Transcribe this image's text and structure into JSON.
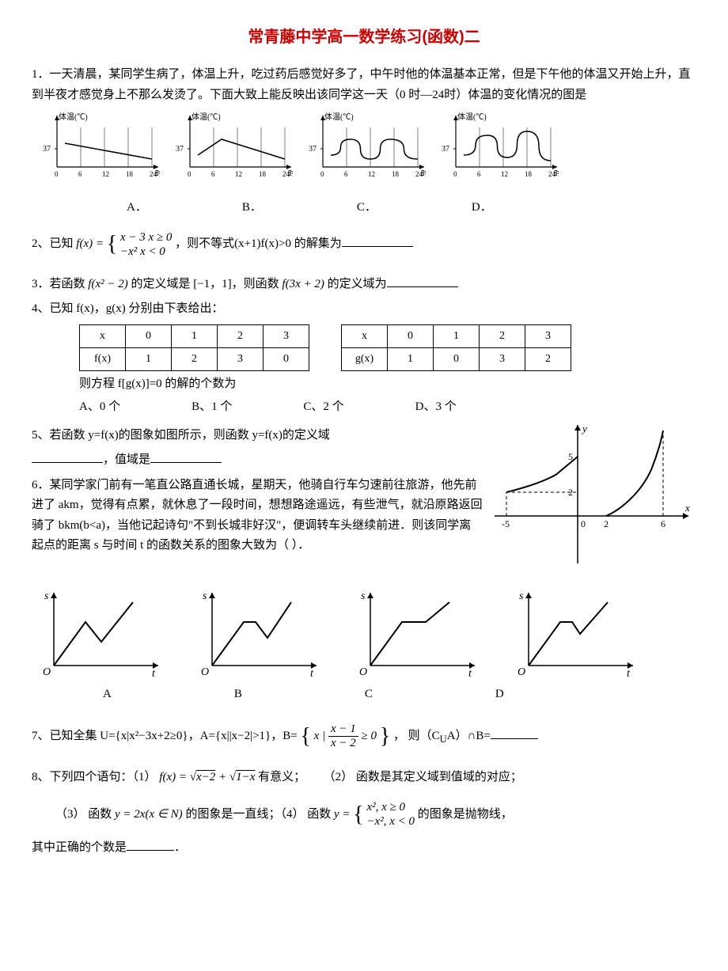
{
  "title": "常青藤中学高一数学练习(函数)二",
  "q1": {
    "num": "1．",
    "text": "一天清晨，某同学生病了，体温上升，吃过药后感觉好多了，中午时他的体温基本正常，但是下午他的体温又开始上升，直到半夜才感觉身上不那么发烫了。下面大致上能反映出该同学这一天（0 时—24时）体温的变化情况的图是",
    "axis_y": "体温(℃)",
    "axis_x": "时",
    "y_tick": "37",
    "x_ticks": [
      "0",
      "6",
      "12",
      "18",
      "24"
    ],
    "opts": [
      "A．",
      "B．",
      "C．",
      "D．"
    ],
    "colors": {
      "axis": "#000000",
      "bg": "#ffffff"
    },
    "curves": {
      "A": [
        [
          10,
          30
        ],
        [
          120,
          50
        ]
      ],
      "B": [
        [
          10,
          45
        ],
        [
          40,
          25
        ],
        [
          120,
          50
        ]
      ],
      "C": [
        [
          10,
          45
        ],
        [
          35,
          25
        ],
        [
          60,
          50
        ],
        [
          85,
          25
        ],
        [
          120,
          50
        ]
      ],
      "D": [
        [
          10,
          45
        ],
        [
          40,
          20
        ],
        [
          65,
          48
        ],
        [
          90,
          15
        ],
        [
          120,
          52
        ]
      ]
    }
  },
  "q2": {
    "num": "2、",
    "pre": "已知 ",
    "fx": "f(x) = ",
    "p1": "x − 3    x ≥ 0",
    "p2": "−x²     x < 0",
    "post": "，则不等式(x+1)f(x)>0 的解集为",
    "blank": true
  },
  "q3": {
    "num": "3．",
    "text_a": "若函数 ",
    "f1": "f(x² − 2)",
    "text_b": " 的定义域是 [−1，1]，则函数 ",
    "f2": "f(3x + 2)",
    "text_c": " 的定义域为",
    "blank": true
  },
  "q4": {
    "num": "4、",
    "text": "已知 f(x)，g(x) 分别由下表给出：",
    "t1": {
      "head": [
        "x",
        "0",
        "1",
        "2",
        "3"
      ],
      "row": [
        "f(x)",
        "1",
        "2",
        "3",
        "0"
      ]
    },
    "t2": {
      "head": [
        "x",
        "0",
        "1",
        "2",
        "3"
      ],
      "row": [
        "g(x)",
        "1",
        "0",
        "3",
        "2"
      ]
    },
    "q": "则方程 f[g(x)]=0 的解的个数为",
    "opts": [
      "A、0 个",
      "B、1 个",
      "C、2 个",
      "D、3 个"
    ]
  },
  "q5": {
    "num": "5、",
    "text": "若函数 y=f(x)的图象如图所示，则函数 y=f(x)的定义域",
    "text2": "，值域是",
    "graph": {
      "x_label": "x",
      "y_label": "y",
      "x_ticks": [
        -5,
        0,
        2,
        6
      ],
      "y_ticks": [
        2,
        5
      ],
      "color": "#000000"
    }
  },
  "q6": {
    "num": "6．",
    "text": "某同学家门前有一笔直公路直通长城，星期天，他骑自行车匀速前往旅游，他先前进了 akm，觉得有点累，就休息了一段时间，想想路途遥远，有些泄气，就沿原路返回骑了 bkm(b<a)，当他记起诗句\"不到长城非好汉\"，便调转车头继续前进．则该同学离起点的距离 s 与时间 t 的函数关系的图象大致为（    ）．",
    "s_label": "s",
    "t_label": "t",
    "o_label": "O",
    "opts": [
      "A",
      "B",
      "C",
      "D"
    ],
    "curves": {
      "A": [
        [
          0,
          100
        ],
        [
          40,
          45
        ],
        [
          60,
          70
        ],
        [
          100,
          20
        ]
      ],
      "B": [
        [
          0,
          100
        ],
        [
          40,
          45
        ],
        [
          55,
          45
        ],
        [
          70,
          65
        ],
        [
          100,
          20
        ]
      ],
      "C": [
        [
          0,
          100
        ],
        [
          40,
          45
        ],
        [
          70,
          45
        ],
        [
          100,
          20
        ]
      ],
      "D": [
        [
          0,
          100
        ],
        [
          40,
          45
        ],
        [
          55,
          45
        ],
        [
          65,
          60
        ],
        [
          100,
          20
        ]
      ]
    }
  },
  "q7": {
    "num": "7、",
    "pre": "已知全集 U={x|x²−3x+2≥0}，A={x||x−2|>1}，B=",
    "set_open": "{",
    "set_close": "}",
    "set_body_pre": "x | ",
    "frac_n": "x − 1",
    "frac_d": "x − 2",
    "set_body_post": " ≥ 0",
    "post": "， 则（C",
    "sub": "U",
    "post2": "A）∩B=",
    "blank": true
  },
  "q8": {
    "num": "8、",
    "text": "下列四个语句：（1） ",
    "f1": "f(x) = √(x−2) + √(1−x)",
    "t1": " 有意义；",
    "t2": "（2） 函数是其定义域到值域的对应；",
    "t3": "（3） 函数 ",
    "f3": "y = 2x(x ∈ N)",
    "t3b": " 的图象是一直线；（4） 函数 ",
    "f4_pre": "y = ",
    "p1": "x²,  x ≥ 0",
    "p2": "−x², x < 0",
    "t4": " 的图象是抛物线，",
    "tail": "其中正确的个数是",
    "blank": true
  }
}
